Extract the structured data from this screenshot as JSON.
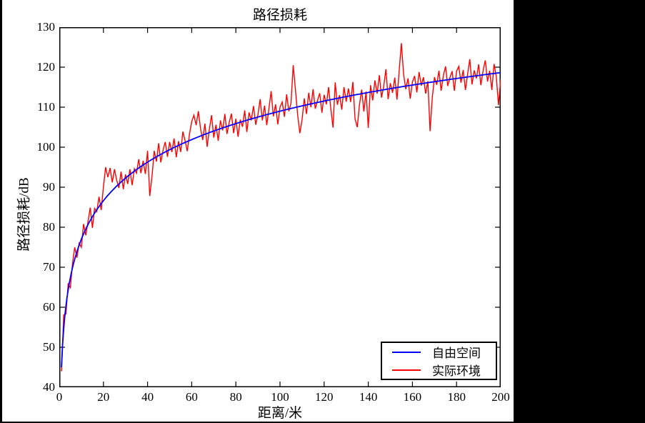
{
  "window": {
    "background_color": "#000000",
    "figure_background_color": "#ffffff"
  },
  "chart_data": {
    "type": "line",
    "title": "路径损耗",
    "xlabel": "距离/米",
    "ylabel": "路径损耗/dB",
    "xlim": [
      0,
      200
    ],
    "ylim": [
      40,
      130
    ],
    "x_ticks": [
      0,
      20,
      40,
      60,
      80,
      100,
      120,
      140,
      160,
      180,
      200
    ],
    "y_ticks": [
      40,
      50,
      60,
      70,
      80,
      90,
      100,
      110,
      120,
      130
    ],
    "grid": false,
    "axis_color": "#000000",
    "legend": {
      "position": "lower-right",
      "entries": [
        {
          "label": "自由空间",
          "color": "#0000ff"
        },
        {
          "label": "实际环境",
          "color": "#ff0000"
        }
      ]
    },
    "series": [
      {
        "name": "自由空间",
        "kind": "log-distance model",
        "model": "PL(d) = 45 + 32*log10(d)",
        "intercept_db": 45,
        "slope_db_per_decade": 32,
        "x_start": 1,
        "x_end": 200,
        "color": "#0000ff",
        "line_width": 1.8
      },
      {
        "name": "实际环境",
        "kind": "measured (noisy)",
        "x_start": 1,
        "x_step": 1,
        "color": "#ff0000",
        "line_width": 1.4,
        "values": [
          44.0,
          58.1,
          58.3,
          65.8,
          64.9,
          70.9,
          75.0,
          72.4,
          76.0,
          75.0,
          80.8,
          78.0,
          81.4,
          84.9,
          79.8,
          84.7,
          83.9,
          87.6,
          84.3,
          90.1,
          95.0,
          92.5,
          94.8,
          91.2,
          94.5,
          91.8,
          89.8,
          93.9,
          89.5,
          93.2,
          90.8,
          94.5,
          90.5,
          94.6,
          93.5,
          97.0,
          93.5,
          96.6,
          93.3,
          99.1,
          87.8,
          92.7,
          99.1,
          96.4,
          101.0,
          96.2,
          99.2,
          101.3,
          97.6,
          101.3,
          98.8,
          102.2,
          97.5,
          101.5,
          98.8,
          103.9,
          101.6,
          99.0,
          103.3,
          106.4,
          108.0,
          105.5,
          109.0,
          104.6,
          101.8,
          105.9,
          100.1,
          104.5,
          108.0,
          102.4,
          105.6,
          101.6,
          106.7,
          104.2,
          108.3,
          103.3,
          106.2,
          108.4,
          103.5,
          107.1,
          102.6,
          106.9,
          105.1,
          109.2,
          103.8,
          108.7,
          106.7,
          110.3,
          105.6,
          108.1,
          112.0,
          106.7,
          110.4,
          105.5,
          109.8,
          114.0,
          107.7,
          110.7,
          105.7,
          110.0,
          111.3,
          107.6,
          113.2,
          109.0,
          111.0,
          120.5,
          114.4,
          108.1,
          103.5,
          106.9,
          112.2,
          108.3,
          113.6,
          110.0,
          114.5,
          109.6,
          111.7,
          113.5,
          108.6,
          113.1,
          110.7,
          115.0,
          109.7,
          104.9,
          116.2,
          110.6,
          113.0,
          109.4,
          115.0,
          111.4,
          114.7,
          111.3,
          116.3,
          107.0,
          105.0,
          110.5,
          114.4,
          108.9,
          113.9,
          104.8,
          115.5,
          111.7,
          116.7,
          113.4,
          118.0,
          112.4,
          115.2,
          119.5,
          112.0,
          116.0,
          113.6,
          117.4,
          111.9,
          119.2,
          126.0,
          118.3,
          114.5,
          117.2,
          112.1,
          116.3,
          117.8,
          113.7,
          118.8,
          115.4,
          117.5,
          113.4,
          116.5,
          104.0,
          112.4,
          117.5,
          115.6,
          119.1,
          114.1,
          117.9,
          120.2,
          115.3,
          117.4,
          119.0,
          114.1,
          119.0,
          120.2,
          116.1,
          119.3,
          114.3,
          118.2,
          122.0,
          115.7,
          119.2,
          117.2,
          120.7,
          115.5,
          119.1,
          121.7,
          116.4,
          119.1,
          114.3,
          120.8,
          117.7,
          110.5,
          117.0
        ]
      }
    ]
  }
}
